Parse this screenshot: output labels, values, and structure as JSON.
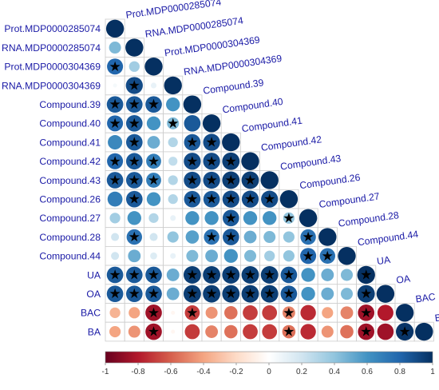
{
  "chart_data": {
    "type": "heatmap",
    "variables": [
      "Prot.MDP0000285074",
      "RNA.MDP0000285074",
      "Prot.MDP0000304369",
      "RNA.MDP0000304369",
      "Compound.39",
      "Compound.40",
      "Compound.41",
      "Compound.42",
      "Compound.43",
      "Compound.26",
      "Compound.27",
      "Compound.28",
      "Compound.44",
      "UA",
      "OA",
      "BAC",
      "BA"
    ],
    "lower_triangle_values": [
      [
        1
      ],
      [
        0.45,
        1
      ],
      [
        0.8,
        0.35,
        1
      ],
      [
        0.05,
        0.9,
        0.1,
        1
      ],
      [
        0.85,
        0.85,
        0.85,
        0.6,
        1
      ],
      [
        0.8,
        0.85,
        0.6,
        0.45,
        0.85,
        1
      ],
      [
        0.65,
        0.85,
        0.5,
        0.3,
        0.85,
        0.9,
        1
      ],
      [
        0.8,
        0.85,
        0.7,
        0.25,
        0.9,
        0.9,
        0.95,
        1
      ],
      [
        0.85,
        0.85,
        0.7,
        0.3,
        0.9,
        0.9,
        0.95,
        0.95,
        1
      ],
      [
        0.7,
        0.85,
        0.6,
        0.3,
        0.85,
        0.85,
        0.9,
        0.9,
        0.9,
        1
      ],
      [
        0.35,
        0.6,
        0.3,
        0.1,
        0.6,
        0.6,
        0.85,
        0.6,
        0.6,
        0.4,
        1
      ],
      [
        0.2,
        0.75,
        0.2,
        0.4,
        0.55,
        0.75,
        0.85,
        0.5,
        0.45,
        0.4,
        0.75,
        1
      ],
      [
        0.2,
        0.5,
        0.15,
        0.1,
        0.45,
        0.5,
        0.6,
        0.45,
        0.35,
        0.4,
        0.8,
        0.75,
        1
      ],
      [
        0.85,
        0.85,
        0.85,
        0.5,
        0.95,
        0.95,
        0.95,
        0.95,
        0.95,
        0.85,
        0.6,
        0.5,
        0.45,
        1
      ],
      [
        0.85,
        0.85,
        0.85,
        0.5,
        0.95,
        0.95,
        0.95,
        0.95,
        0.95,
        0.85,
        0.6,
        0.5,
        0.45,
        0.95,
        1
      ],
      [
        -0.35,
        -0.4,
        -0.85,
        -0.05,
        -0.7,
        -0.45,
        -0.55,
        -0.7,
        -0.7,
        -0.5,
        -0.75,
        -0.4,
        -0.5,
        -0.85,
        -0.8,
        1
      ],
      [
        -0.4,
        -0.45,
        -0.85,
        -0.05,
        -0.7,
        -0.5,
        -0.55,
        -0.7,
        -0.7,
        -0.55,
        -0.75,
        -0.45,
        -0.55,
        -0.85,
        -0.85,
        0.98,
        1
      ]
    ],
    "significant_cells": [
      [
        2,
        0
      ],
      [
        3,
        1
      ],
      [
        4,
        0
      ],
      [
        4,
        1
      ],
      [
        4,
        2
      ],
      [
        5,
        0
      ],
      [
        5,
        1
      ],
      [
        5,
        3
      ],
      [
        6,
        1
      ],
      [
        6,
        4
      ],
      [
        6,
        5
      ],
      [
        7,
        0
      ],
      [
        7,
        1
      ],
      [
        7,
        2
      ],
      [
        7,
        4
      ],
      [
        7,
        5
      ],
      [
        7,
        6
      ],
      [
        8,
        0
      ],
      [
        8,
        1
      ],
      [
        8,
        2
      ],
      [
        8,
        4
      ],
      [
        8,
        5
      ],
      [
        8,
        6
      ],
      [
        8,
        7
      ],
      [
        9,
        1
      ],
      [
        9,
        4
      ],
      [
        9,
        5
      ],
      [
        9,
        6
      ],
      [
        9,
        7
      ],
      [
        9,
        8
      ],
      [
        10,
        6
      ],
      [
        10,
        9
      ],
      [
        11,
        1
      ],
      [
        11,
        5
      ],
      [
        11,
        6
      ],
      [
        11,
        10
      ],
      [
        12,
        10
      ],
      [
        12,
        11
      ],
      [
        13,
        0
      ],
      [
        13,
        1
      ],
      [
        13,
        2
      ],
      [
        13,
        4
      ],
      [
        13,
        5
      ],
      [
        13,
        6
      ],
      [
        13,
        7
      ],
      [
        13,
        8
      ],
      [
        13,
        9
      ],
      [
        13,
        13
      ],
      [
        14,
        0
      ],
      [
        14,
        1
      ],
      [
        14,
        2
      ],
      [
        14,
        4
      ],
      [
        14,
        5
      ],
      [
        14,
        6
      ],
      [
        14,
        7
      ],
      [
        14,
        8
      ],
      [
        14,
        9
      ],
      [
        14,
        13
      ],
      [
        15,
        2
      ],
      [
        15,
        4
      ],
      [
        15,
        9
      ],
      [
        15,
        13
      ],
      [
        16,
        2
      ],
      [
        16,
        9
      ],
      [
        16,
        13
      ],
      [
        16,
        15
      ]
    ],
    "significance_marker": "★",
    "colorbar": {
      "range": [
        -1,
        1
      ],
      "ticks": [
        "-1",
        "-0.8",
        "-0.6",
        "-0.4",
        "-0.2",
        "0",
        "0.2",
        "0.4",
        "0.6",
        "0.8",
        "1"
      ],
      "colors": [
        "#67001f",
        "#b2182b",
        "#d6604d",
        "#f4a582",
        "#fddbc7",
        "#ffffff",
        "#d1e5f0",
        "#92c5de",
        "#4393c3",
        "#2166ac",
        "#053061"
      ]
    },
    "label_color": "#1a1aa6",
    "grid_color": "#cccccc"
  }
}
